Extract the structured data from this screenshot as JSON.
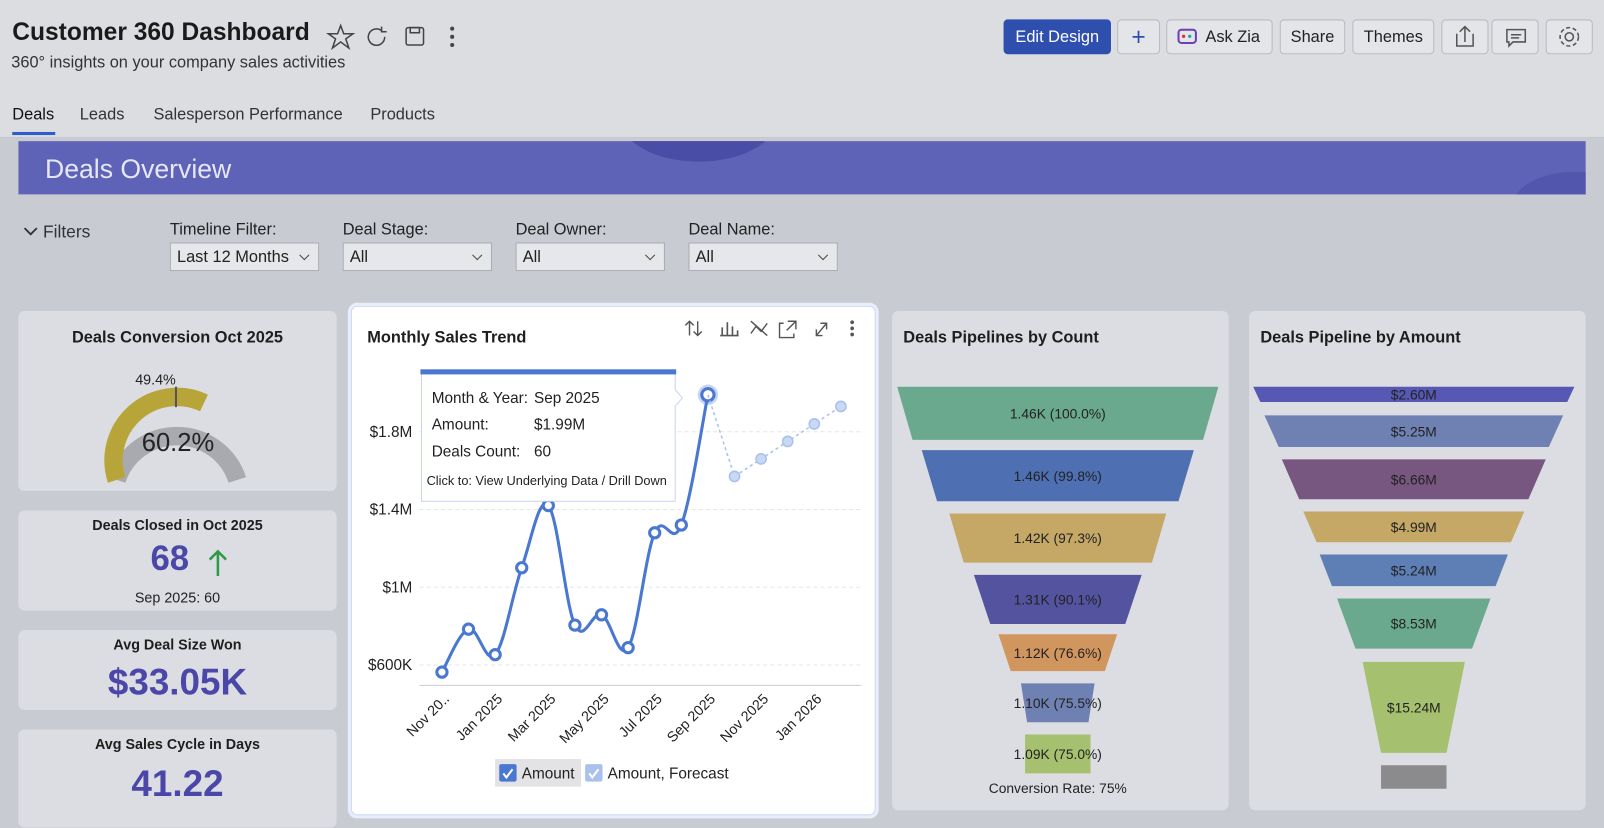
{
  "header": {
    "title": "Customer 360 Dashboard",
    "subtitle": "360° insights on your company sales activities",
    "buttons": [
      "Edit Design",
      "Ask Zia",
      "Share",
      "Themes"
    ]
  },
  "tabs": [
    "Deals",
    "Leads",
    "Salesperson Performance",
    "Products"
  ],
  "banner": "Deals Overview",
  "filters": {
    "toggle": "Filters",
    "items": [
      {
        "label": "Timeline Filter:",
        "value": "Last 12 Months"
      },
      {
        "label": "Deal Stage:",
        "value": "All"
      },
      {
        "label": "Deal Owner:",
        "value": "All"
      },
      {
        "label": "Deal Name:",
        "value": "All"
      }
    ]
  },
  "kpis": {
    "conversion": {
      "title": "Deals Conversion Oct 2025",
      "value": "60.2%",
      "target": "49.4%"
    },
    "closed": {
      "title": "Deals Closed in Oct 2025",
      "value": "68",
      "compare": "Sep 2025: 60"
    },
    "avg_deal": {
      "title": "Avg Deal Size Won",
      "value": "$33.05K"
    },
    "cycle": {
      "title": "Avg Sales Cycle in Days",
      "value": "41.22"
    }
  },
  "chart_data": {
    "type": "line",
    "title": "Monthly Sales Trend",
    "categories": [
      "Nov 20..",
      null,
      "Jan 2025",
      null,
      "Mar 2025",
      null,
      "May 2025",
      null,
      "Jul 2025",
      null,
      "Sep 2025",
      null,
      "Nov 2025",
      null,
      "Jan 2026",
      null
    ],
    "series": [
      {
        "name": "Amount",
        "color": "#4a78d1",
        "values": [
          563000,
          784000,
          653000,
          1100000,
          1420000,
          805000,
          858000,
          689000,
          1280000,
          1320000,
          1990000,
          null,
          null,
          null,
          null,
          null
        ]
      },
      {
        "name": "Amount, Forecast",
        "color": "#a9c1ec",
        "values": [
          null,
          null,
          null,
          null,
          null,
          null,
          null,
          null,
          null,
          null,
          1990000,
          1570000,
          1660000,
          1750000,
          1840000,
          1930000
        ]
      }
    ],
    "ylim": [
      500000,
      2100000
    ],
    "yticks": [
      {
        "value": 600000,
        "label": "$600K"
      },
      {
        "value": 1000000,
        "label": "$1M"
      },
      {
        "value": 1400000,
        "label": "$1.4M"
      },
      {
        "value": 1800000,
        "label": "$1.8M"
      }
    ],
    "grid": true
  },
  "tooltip": {
    "rows": [
      {
        "key": "Month & Year:",
        "value": "Sep 2025"
      },
      {
        "key": "Amount:",
        "value": "$1.99M"
      },
      {
        "key": "Deals Count:",
        "value": "60"
      }
    ],
    "hint": "Click to: View Underlying Data / Drill Down"
  },
  "funnel_count": {
    "title": "Deals Pipelines by Count",
    "stages": [
      "1.46K (100.0%)",
      "1.46K (99.8%)",
      "1.42K (97.3%)",
      "1.31K (90.1%)",
      "1.12K (76.6%)",
      "1.10K (75.5%)",
      "1.09K (75.0%)"
    ],
    "footer": "Conversion Rate: 75%"
  },
  "funnel_amount": {
    "title": "Deals Pipeline by Amount",
    "stages": [
      "$2.60M",
      "$5.25M",
      "$6.66M",
      "$4.99M",
      "$5.24M",
      "$8.53M",
      "$15.24M",
      null
    ]
  }
}
